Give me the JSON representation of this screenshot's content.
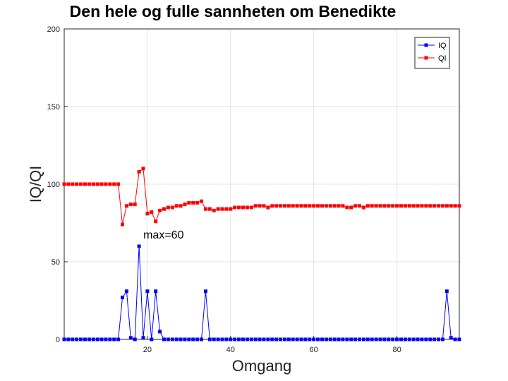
{
  "chart_data": {
    "type": "line",
    "title": "Den hele og fulle sannheten om Benedikte",
    "xlabel": "Omgang",
    "ylabel": "IQ/QI",
    "xlim": [
      0,
      95
    ],
    "ylim": [
      0,
      200
    ],
    "x_ticks": [
      20,
      40,
      60,
      80
    ],
    "y_ticks": [
      0,
      50,
      100,
      150,
      200
    ],
    "grid": true,
    "legend_position": "top-right",
    "annotation": {
      "text": "max=60",
      "x": 18,
      "y": 60
    },
    "x": [
      0,
      1,
      2,
      3,
      4,
      5,
      6,
      7,
      8,
      9,
      10,
      11,
      12,
      13,
      14,
      15,
      16,
      17,
      18,
      19,
      20,
      21,
      22,
      23,
      24,
      25,
      26,
      27,
      28,
      29,
      30,
      31,
      32,
      33,
      34,
      35,
      36,
      37,
      38,
      39,
      40,
      41,
      42,
      43,
      44,
      45,
      46,
      47,
      48,
      49,
      50,
      51,
      52,
      53,
      54,
      55,
      56,
      57,
      58,
      59,
      60,
      61,
      62,
      63,
      64,
      65,
      66,
      67,
      68,
      69,
      70,
      71,
      72,
      73,
      74,
      75,
      76,
      77,
      78,
      79,
      80,
      81,
      82,
      83,
      84,
      85,
      86,
      87,
      88,
      89,
      90,
      91,
      92,
      93,
      94,
      95
    ],
    "series": [
      {
        "name": "IQ",
        "color": "#0000ff",
        "values": [
          0,
          0,
          0,
          0,
          0,
          0,
          0,
          0,
          0,
          0,
          0,
          0,
          0,
          0,
          27,
          31,
          1,
          0,
          60,
          1,
          31,
          0,
          31,
          5,
          0,
          0,
          0,
          0,
          0,
          0,
          0,
          0,
          0,
          0,
          31,
          0,
          0,
          0,
          0,
          0,
          0,
          0,
          0,
          0,
          0,
          0,
          0,
          0,
          0,
          0,
          0,
          0,
          0,
          0,
          0,
          0,
          0,
          0,
          0,
          0,
          0,
          0,
          0,
          0,
          0,
          0,
          0,
          0,
          0,
          0,
          0,
          0,
          0,
          0,
          0,
          0,
          0,
          0,
          0,
          0,
          0,
          0,
          0,
          0,
          0,
          0,
          0,
          0,
          0,
          0,
          0,
          0,
          31,
          1,
          0,
          0
        ]
      },
      {
        "name": "QI",
        "color": "#ff0000",
        "values": [
          100,
          100,
          100,
          100,
          100,
          100,
          100,
          100,
          100,
          100,
          100,
          100,
          100,
          100,
          74,
          86,
          87,
          87,
          108,
          110,
          81,
          82,
          76,
          83,
          84,
          85,
          85,
          86,
          86,
          87,
          88,
          88,
          88,
          89,
          84,
          84,
          83,
          84,
          84,
          84,
          84,
          85,
          85,
          85,
          85,
          85,
          86,
          86,
          86,
          85,
          86,
          86,
          86,
          86,
          86,
          86,
          86,
          86,
          86,
          86,
          86,
          86,
          86,
          86,
          86,
          86,
          86,
          86,
          85,
          85,
          86,
          86,
          85,
          86,
          86,
          86,
          86,
          86,
          86,
          86,
          86,
          86,
          86,
          86,
          86,
          86,
          86,
          86,
          86,
          86,
          86,
          86,
          86,
          86,
          86,
          86
        ]
      }
    ]
  }
}
